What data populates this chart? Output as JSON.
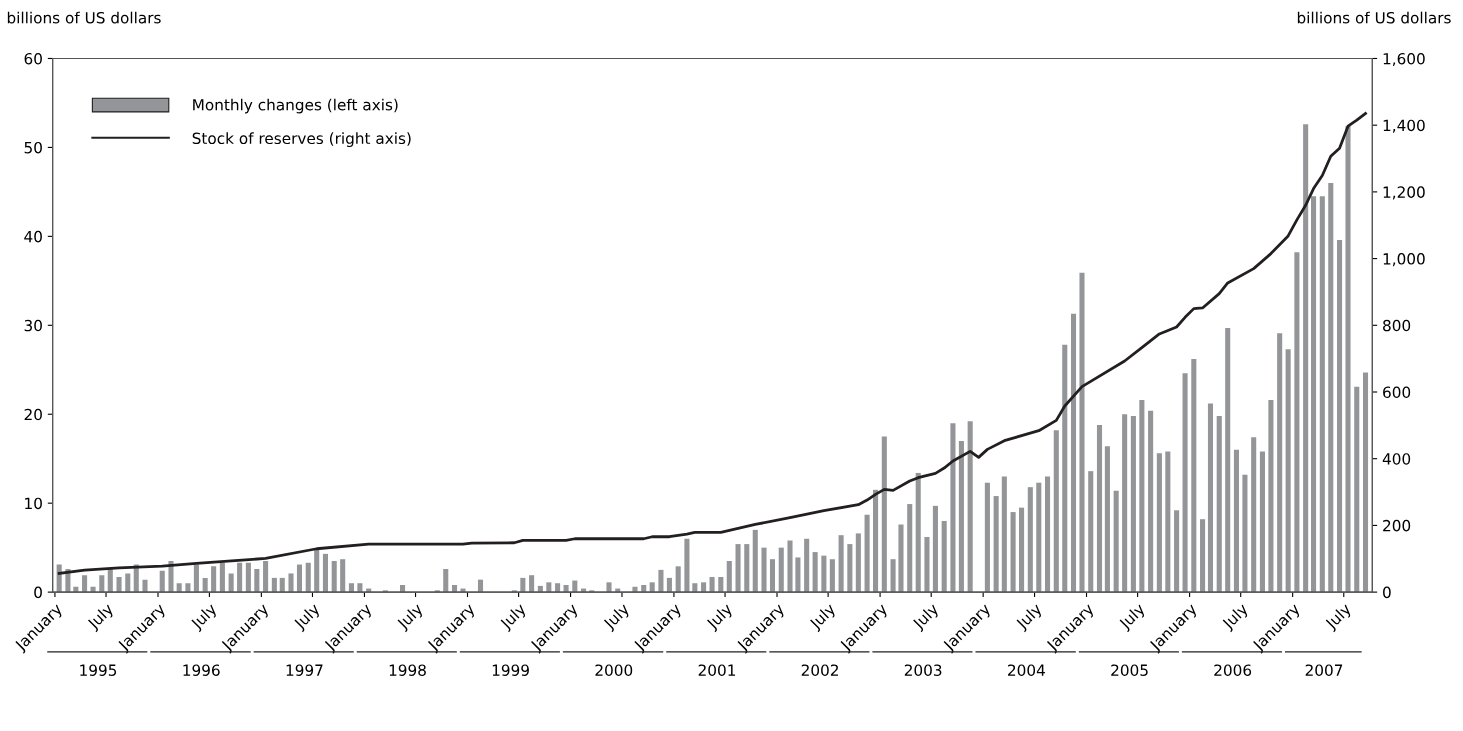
{
  "chart_data": {
    "type": "bar",
    "ylabel": "billions of US dollars",
    "y2label": "billions of US dollars",
    "x": [
      "1995-01",
      "1995-02",
      "1995-03",
      "1995-04",
      "1995-05",
      "1995-06",
      "1995-07",
      "1995-08",
      "1995-09",
      "1995-10",
      "1995-11",
      "1995-12",
      "1996-01",
      "1996-02",
      "1996-03",
      "1996-04",
      "1996-05",
      "1996-06",
      "1996-07",
      "1996-08",
      "1996-09",
      "1996-10",
      "1996-11",
      "1996-12",
      "1997-01",
      "1997-02",
      "1997-03",
      "1997-04",
      "1997-05",
      "1997-06",
      "1997-07",
      "1997-08",
      "1997-09",
      "1997-10",
      "1997-11",
      "1997-12",
      "1998-01",
      "1998-02",
      "1998-03",
      "1998-04",
      "1998-05",
      "1998-06",
      "1998-07",
      "1998-08",
      "1998-09",
      "1998-10",
      "1998-11",
      "1998-12",
      "1999-01",
      "1999-02",
      "1999-03",
      "1999-04",
      "1999-05",
      "1999-06",
      "1999-07",
      "1999-08",
      "1999-09",
      "1999-10",
      "1999-11",
      "1999-12",
      "2000-01",
      "2000-02",
      "2000-03",
      "2000-04",
      "2000-05",
      "2000-06",
      "2000-07",
      "2000-08",
      "2000-09",
      "2000-10",
      "2000-11",
      "2000-12",
      "2001-01",
      "2001-02",
      "2001-03",
      "2001-04",
      "2001-05",
      "2001-06",
      "2001-07",
      "2001-08",
      "2001-09",
      "2001-10",
      "2001-11",
      "2001-12",
      "2002-01",
      "2002-02",
      "2002-03",
      "2002-04",
      "2002-05",
      "2002-06",
      "2002-07",
      "2002-08",
      "2002-09",
      "2002-10",
      "2002-11",
      "2002-12",
      "2003-01",
      "2003-02",
      "2003-03",
      "2003-04",
      "2003-05",
      "2003-06",
      "2003-07",
      "2003-08",
      "2003-09",
      "2003-10",
      "2003-11",
      "2003-12",
      "2004-01",
      "2004-02",
      "2004-03",
      "2004-04",
      "2004-05",
      "2004-06",
      "2004-07",
      "2004-08",
      "2004-09",
      "2004-10",
      "2004-11",
      "2004-12",
      "2005-01",
      "2005-02",
      "2005-03",
      "2005-04",
      "2005-05",
      "2005-06",
      "2005-07",
      "2005-08",
      "2005-09",
      "2005-10",
      "2005-11",
      "2005-12",
      "2006-01",
      "2006-02",
      "2006-03",
      "2006-04",
      "2006-05",
      "2006-06",
      "2006-07",
      "2006-08",
      "2006-09",
      "2006-10",
      "2006-11",
      "2006-12",
      "2007-01",
      "2007-02",
      "2007-03",
      "2007-04",
      "2007-05",
      "2007-06",
      "2007-07",
      "2007-08",
      "2007-09"
    ],
    "series": [
      {
        "name": "Monthly changes (left axis)",
        "color": "#939598",
        "values": [
          3.1,
          2.6,
          0.6,
          1.9,
          0.6,
          1.9,
          2.7,
          1.7,
          2.1,
          3.1,
          1.4,
          0,
          2.4,
          3.5,
          1.0,
          1.0,
          3.1,
          1.6,
          2.9,
          3.3,
          2.1,
          3.3,
          3.3,
          2.6,
          3.5,
          1.6,
          1.6,
          2.1,
          3.1,
          3.3,
          4.9,
          4.3,
          3.5,
          3.7,
          1.0,
          1.0,
          0.4,
          0,
          0.2,
          0,
          0.8,
          0,
          0,
          0,
          0.2,
          2.6,
          0.8,
          0.4,
          0,
          1.4,
          0,
          0,
          0,
          0.2,
          1.6,
          1.9,
          0.7,
          1.1,
          1.0,
          0.8,
          1.3,
          0.4,
          0.2,
          null,
          1.1,
          0.4,
          0,
          0.6,
          0.8,
          1.1,
          2.5,
          1.6,
          2.9,
          6.0,
          1.0,
          1.1,
          1.7,
          1.7,
          3.5,
          5.4,
          5.4,
          7.0,
          5.0,
          3.7,
          5.0,
          5.8,
          3.9,
          6.0,
          4.5,
          4.1,
          3.7,
          6.4,
          5.4,
          6.6,
          8.7,
          11.5,
          17.5,
          3.7,
          7.6,
          9.9,
          13.4,
          6.2,
          9.7,
          8.0,
          19.0,
          17.0,
          19.2,
          0,
          12.3,
          10.8,
          13.0,
          9.0,
          9.5,
          11.8,
          12.3,
          13.0,
          18.2,
          27.8,
          31.3,
          35.9,
          13.6,
          18.8,
          16.4,
          11.4,
          20.0,
          19.8,
          21.6,
          20.4,
          15.6,
          15.8,
          9.2,
          24.6,
          26.2,
          8.2,
          21.2,
          19.8,
          29.7,
          16.0,
          13.2,
          17.4,
          15.8,
          21.6,
          29.1,
          27.3,
          38.2,
          52.6,
          44.5,
          44.5,
          46.0,
          39.6,
          52.4,
          23.1,
          24.7
        ]
      },
      {
        "name": "Stock of reserves (right axis)",
        "type": "line",
        "axis": "y2",
        "color": "#231f20",
        "x": [
          "1995-01",
          "1995-04",
          "1995-08",
          "1996-01",
          "1996-05",
          "1997-01",
          "1997-07",
          "1998-01",
          "1998-12",
          "1999-01",
          "1999-06",
          "1999-07",
          "1999-12",
          "2000-01",
          "2000-09",
          "2000-10",
          "2000-12",
          "2001-02",
          "2001-03",
          "2001-06",
          "2001-10",
          "2002-02",
          "2002-06",
          "2002-10",
          "2002-11",
          "2002-12",
          "2003-01",
          "2003-02",
          "2003-04",
          "2003-05",
          "2003-07",
          "2003-08",
          "2003-09",
          "2003-11",
          "2003-12",
          "2004-01",
          "2004-03",
          "2004-07",
          "2004-09",
          "2004-10",
          "2004-12",
          "2005-01",
          "2005-05",
          "2005-07",
          "2005-09",
          "2005-11",
          "2005-12",
          "2006-01",
          "2006-02",
          "2006-04",
          "2006-05",
          "2006-08",
          "2006-10",
          "2006-12",
          "2007-01",
          "2007-02",
          "2007-03",
          "2007-04",
          "2007-05",
          "2007-06",
          "2007-07",
          "2007-08",
          "2007-09"
        ],
        "values": [
          56,
          66,
          73,
          78,
          86,
          101,
          130,
          144,
          144,
          147,
          148,
          155,
          155,
          160,
          160,
          166,
          166,
          174,
          179,
          179,
          203,
          223,
          244,
          262,
          276,
          293,
          308,
          305,
          333,
          343,
          356,
          372,
          393,
          422,
          404,
          428,
          454,
          484,
          515,
          558,
          616,
          632,
          693,
          733,
          774,
          795,
          824,
          850,
          852,
          895,
          927,
          970,
          1015,
          1068,
          1116,
          1160,
          1210,
          1249,
          1307,
          1331,
          1397,
          1415,
          1435
        ]
      }
    ],
    "xlim": [
      "1994-12-24",
      "2007-10-10"
    ],
    "xticks": [
      {
        "value": "1995-01",
        "label": "January"
      },
      {
        "value": "1995-07",
        "label": "July"
      },
      {
        "value": "1996-01",
        "label": "January"
      },
      {
        "value": "1996-07",
        "label": "July"
      },
      {
        "value": "1997-01",
        "label": "January"
      },
      {
        "value": "1997-07",
        "label": "July"
      },
      {
        "value": "1998-01",
        "label": "January"
      },
      {
        "value": "1998-07",
        "label": "July"
      },
      {
        "value": "1999-01",
        "label": "January"
      },
      {
        "value": "1999-07",
        "label": "July"
      },
      {
        "value": "2000-01",
        "label": "January"
      },
      {
        "value": "2000-07",
        "label": "July"
      },
      {
        "value": "2001-01",
        "label": "January"
      },
      {
        "value": "2001-07",
        "label": "July"
      },
      {
        "value": "2002-01",
        "label": "January"
      },
      {
        "value": "2002-07",
        "label": "July"
      },
      {
        "value": "2003-01",
        "label": "January"
      },
      {
        "value": "2003-07",
        "label": "July"
      },
      {
        "value": "2004-01",
        "label": "January"
      },
      {
        "value": "2004-07",
        "label": "July"
      },
      {
        "value": "2005-01",
        "label": "January"
      },
      {
        "value": "2005-07",
        "label": "July"
      },
      {
        "value": "2006-01",
        "label": "January"
      },
      {
        "value": "2006-07",
        "label": "July"
      },
      {
        "value": "2007-01",
        "label": "January"
      },
      {
        "value": "2007-07",
        "label": "July"
      }
    ],
    "ylim": [
      0,
      60
    ],
    "yticks": [
      0,
      10,
      20,
      30,
      40,
      50,
      60
    ],
    "y2lim": [
      0,
      1600
    ],
    "y2ticks": [
      0,
      {
        "value": 200,
        "label": "200"
      },
      {
        "value": 400,
        "label": "400"
      },
      {
        "value": 600,
        "label": "600"
      },
      {
        "value": 800,
        "label": "800"
      },
      {
        "value": 1000,
        "label": "1,000"
      },
      {
        "value": 1200,
        "label": "1,200"
      },
      {
        "value": 1400,
        "label": "1,400"
      },
      {
        "value": 1600,
        "label": "1,600"
      }
    ],
    "annotations": [
      "1995",
      "1996",
      "1997",
      "1998",
      "1999",
      "2000",
      "2001",
      "2002",
      "2003",
      "2004",
      "2005",
      "2006",
      "2007"
    ],
    "legend": "top left",
    "grid": false
  }
}
